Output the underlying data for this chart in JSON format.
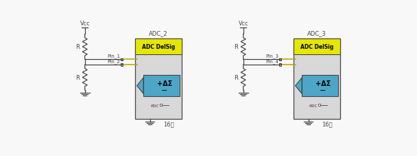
{
  "bg_color": "#f8f8f8",
  "line_color": "#444444",
  "adc_box_color": "#d8d8d8",
  "adc_header_color": "#e6e600",
  "adc_body_color": "#4da6c8",
  "wire_color": "#b8a000",
  "circuit1": {
    "pin1_label": "Pin_1",
    "pin2_label": "Pin_2",
    "res1_label": "R",
    "res2_label": "R",
    "adc_label": "ADC_2",
    "adc_delsig": "ADC DelSig",
    "eoc_label": "eoc",
    "bit_label": "16位"
  },
  "circuit2": {
    "pin1_label": "Pin_3",
    "pin2_label": "Pin_4",
    "res1_label": "R",
    "res2_label": "R",
    "adc_label": "ADC_3",
    "adc_delsig": "ADC DelSig",
    "eoc_label": "eoc",
    "bit_label": "16位"
  }
}
